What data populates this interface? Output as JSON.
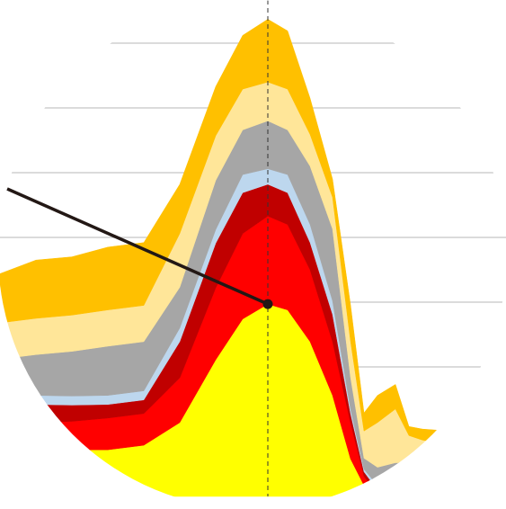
{
  "chart_data": {
    "type": "stacked-area",
    "x": [
      0,
      4,
      8,
      12,
      16,
      20,
      24,
      27,
      29.8,
      32,
      34.5,
      37,
      39,
      40.5,
      42,
      44,
      45.5,
      47,
      50,
      56.3
    ],
    "xlim": [
      0,
      56.3
    ],
    "ylim": [
      0,
      75
    ],
    "yticks": [
      10,
      20,
      30,
      40,
      50,
      60,
      70
    ],
    "grid": true,
    "highlight_index": 8,
    "series": [
      {
        "color": "#ffff00",
        "values": [
          6.5,
          6.5,
          7.2,
          7.2,
          7.9,
          11.4,
          21.1,
          27.4,
          29.7,
          28.8,
          23.9,
          15.6,
          5.8,
          1.7,
          0,
          0,
          0,
          0,
          0,
          0
        ]
      },
      {
        "color": "#ff0000",
        "values": [
          4.9,
          4.9,
          4.4,
          4.9,
          4.9,
          6.9,
          11.1,
          13.2,
          13.6,
          13.2,
          11.1,
          8.3,
          5.6,
          1.4,
          0.3,
          0,
          0,
          0,
          0,
          0
        ]
      },
      {
        "color": "#c00000",
        "values": [
          2.1,
          2.8,
          2.5,
          2.1,
          2.1,
          5.6,
          6.9,
          6.3,
          4.9,
          4.9,
          4.2,
          4.2,
          1.4,
          0.7,
          0.7,
          0.3,
          0,
          0,
          0,
          0
        ]
      },
      {
        "color": "#bdd7ee",
        "values": [
          1.4,
          1.4,
          1.4,
          1.4,
          1.4,
          2.1,
          2.1,
          2.8,
          2.4,
          2.8,
          2.8,
          2.1,
          0.7,
          0.4,
          0.7,
          0.3,
          0.3,
          0.3,
          0,
          0
        ]
      },
      {
        "color": "#a6a6a6",
        "values": [
          6.3,
          6.3,
          6.9,
          7.6,
          7.6,
          6.3,
          7.6,
          6.9,
          7.4,
          6.9,
          9.0,
          11.1,
          4.9,
          1.7,
          2.8,
          4.6,
          4.9,
          4.2,
          3.8,
          3.8
        ]
      },
      {
        "color": "#ffe699",
        "values": [
          5.6,
          5.6,
          5.6,
          5.6,
          5.6,
          8.3,
          6.9,
          6.3,
          6.0,
          6.3,
          4.9,
          4.9,
          5.6,
          4.2,
          6.9,
          8.3,
          4.2,
          4.2,
          4.2,
          4.2
        ]
      },
      {
        "color": "#ffc000",
        "values": [
          7.6,
          9.0,
          9.0,
          9.7,
          9.7,
          7.6,
          7.6,
          8.3,
          9.7,
          9.0,
          5.6,
          2.8,
          5.6,
          2.8,
          4.2,
          3.8,
          1.4,
          1.7,
          2.1,
          2.1
        ]
      }
    ]
  }
}
